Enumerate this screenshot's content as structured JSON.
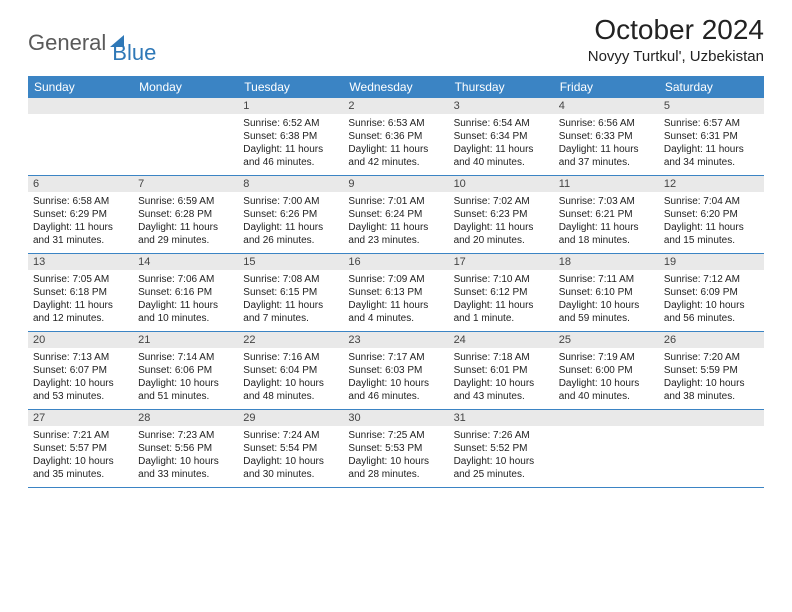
{
  "brand": {
    "part1": "General",
    "part2": "Blue"
  },
  "title": "October 2024",
  "location": "Novyy Turtkul', Uzbekistan",
  "columns": [
    "Sunday",
    "Monday",
    "Tuesday",
    "Wednesday",
    "Thursday",
    "Friday",
    "Saturday"
  ],
  "colors": {
    "header_bg": "#3b84c4",
    "header_text": "#ffffff",
    "daynum_bg": "#e9e9e9",
    "row_border": "#3b84c4",
    "logo_gray": "#5a5a5a",
    "logo_blue": "#2f78b7",
    "page_bg": "#ffffff"
  },
  "weeks": [
    [
      null,
      null,
      {
        "n": "1",
        "sr": "6:52 AM",
        "ss": "6:38 PM",
        "dl": "11 hours and 46 minutes."
      },
      {
        "n": "2",
        "sr": "6:53 AM",
        "ss": "6:36 PM",
        "dl": "11 hours and 42 minutes."
      },
      {
        "n": "3",
        "sr": "6:54 AM",
        "ss": "6:34 PM",
        "dl": "11 hours and 40 minutes."
      },
      {
        "n": "4",
        "sr": "6:56 AM",
        "ss": "6:33 PM",
        "dl": "11 hours and 37 minutes."
      },
      {
        "n": "5",
        "sr": "6:57 AM",
        "ss": "6:31 PM",
        "dl": "11 hours and 34 minutes."
      }
    ],
    [
      {
        "n": "6",
        "sr": "6:58 AM",
        "ss": "6:29 PM",
        "dl": "11 hours and 31 minutes."
      },
      {
        "n": "7",
        "sr": "6:59 AM",
        "ss": "6:28 PM",
        "dl": "11 hours and 29 minutes."
      },
      {
        "n": "8",
        "sr": "7:00 AM",
        "ss": "6:26 PM",
        "dl": "11 hours and 26 minutes."
      },
      {
        "n": "9",
        "sr": "7:01 AM",
        "ss": "6:24 PM",
        "dl": "11 hours and 23 minutes."
      },
      {
        "n": "10",
        "sr": "7:02 AM",
        "ss": "6:23 PM",
        "dl": "11 hours and 20 minutes."
      },
      {
        "n": "11",
        "sr": "7:03 AM",
        "ss": "6:21 PM",
        "dl": "11 hours and 18 minutes."
      },
      {
        "n": "12",
        "sr": "7:04 AM",
        "ss": "6:20 PM",
        "dl": "11 hours and 15 minutes."
      }
    ],
    [
      {
        "n": "13",
        "sr": "7:05 AM",
        "ss": "6:18 PM",
        "dl": "11 hours and 12 minutes."
      },
      {
        "n": "14",
        "sr": "7:06 AM",
        "ss": "6:16 PM",
        "dl": "11 hours and 10 minutes."
      },
      {
        "n": "15",
        "sr": "7:08 AM",
        "ss": "6:15 PM",
        "dl": "11 hours and 7 minutes."
      },
      {
        "n": "16",
        "sr": "7:09 AM",
        "ss": "6:13 PM",
        "dl": "11 hours and 4 minutes."
      },
      {
        "n": "17",
        "sr": "7:10 AM",
        "ss": "6:12 PM",
        "dl": "11 hours and 1 minute."
      },
      {
        "n": "18",
        "sr": "7:11 AM",
        "ss": "6:10 PM",
        "dl": "10 hours and 59 minutes."
      },
      {
        "n": "19",
        "sr": "7:12 AM",
        "ss": "6:09 PM",
        "dl": "10 hours and 56 minutes."
      }
    ],
    [
      {
        "n": "20",
        "sr": "7:13 AM",
        "ss": "6:07 PM",
        "dl": "10 hours and 53 minutes."
      },
      {
        "n": "21",
        "sr": "7:14 AM",
        "ss": "6:06 PM",
        "dl": "10 hours and 51 minutes."
      },
      {
        "n": "22",
        "sr": "7:16 AM",
        "ss": "6:04 PM",
        "dl": "10 hours and 48 minutes."
      },
      {
        "n": "23",
        "sr": "7:17 AM",
        "ss": "6:03 PM",
        "dl": "10 hours and 46 minutes."
      },
      {
        "n": "24",
        "sr": "7:18 AM",
        "ss": "6:01 PM",
        "dl": "10 hours and 43 minutes."
      },
      {
        "n": "25",
        "sr": "7:19 AM",
        "ss": "6:00 PM",
        "dl": "10 hours and 40 minutes."
      },
      {
        "n": "26",
        "sr": "7:20 AM",
        "ss": "5:59 PM",
        "dl": "10 hours and 38 minutes."
      }
    ],
    [
      {
        "n": "27",
        "sr": "7:21 AM",
        "ss": "5:57 PM",
        "dl": "10 hours and 35 minutes."
      },
      {
        "n": "28",
        "sr": "7:23 AM",
        "ss": "5:56 PM",
        "dl": "10 hours and 33 minutes."
      },
      {
        "n": "29",
        "sr": "7:24 AM",
        "ss": "5:54 PM",
        "dl": "10 hours and 30 minutes."
      },
      {
        "n": "30",
        "sr": "7:25 AM",
        "ss": "5:53 PM",
        "dl": "10 hours and 28 minutes."
      },
      {
        "n": "31",
        "sr": "7:26 AM",
        "ss": "5:52 PM",
        "dl": "10 hours and 25 minutes."
      },
      null,
      null
    ]
  ],
  "labels": {
    "sunrise": "Sunrise:",
    "sunset": "Sunset:",
    "daylight": "Daylight:"
  }
}
